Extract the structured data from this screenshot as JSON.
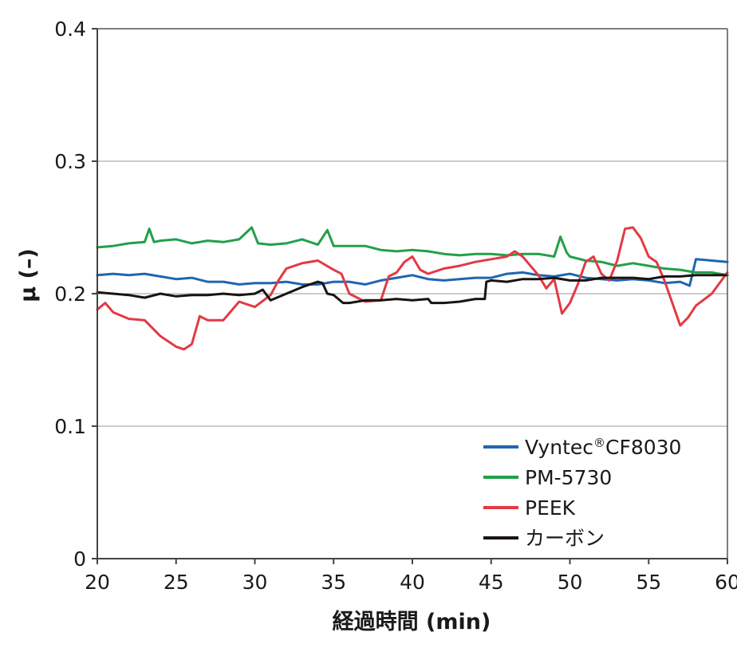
{
  "chart_data": {
    "type": "line",
    "xlabel": "経過時間 (min)",
    "ylabel": "μ (–)",
    "xlim": [
      20,
      60
    ],
    "ylim": [
      0,
      0.4
    ],
    "xticks": [
      20,
      25,
      30,
      35,
      40,
      45,
      50,
      55,
      60
    ],
    "xtick_labels": [
      "20",
      "25",
      "30",
      "35",
      "40",
      "45",
      "50",
      "55",
      "60"
    ],
    "yticks": [
      0,
      0.1,
      0.2,
      0.3,
      0.4
    ],
    "ytick_labels": [
      "0",
      "0.1",
      "0.2",
      "0.3",
      "0.4"
    ],
    "grid": "horizontal",
    "legend": "bottom-right",
    "series": [
      {
        "name": "Vyntec®CF8030",
        "legend_base": "Vyntec",
        "legend_sup": "®",
        "legend_suffix": "CF8030",
        "color": "#1f66b0",
        "x": [
          20,
          21,
          22,
          23,
          24,
          25,
          26,
          27,
          28,
          29,
          30,
          31,
          32,
          33,
          34,
          35,
          36,
          37,
          38,
          39,
          40,
          41,
          42,
          43,
          44,
          45,
          46,
          47,
          48,
          49,
          50,
          51,
          52,
          53,
          54,
          55,
          56,
          57,
          57.6,
          58,
          59,
          60
        ],
        "y": [
          0.214,
          0.215,
          0.214,
          0.215,
          0.213,
          0.211,
          0.212,
          0.209,
          0.209,
          0.207,
          0.208,
          0.208,
          0.209,
          0.207,
          0.207,
          0.209,
          0.209,
          0.207,
          0.21,
          0.212,
          0.214,
          0.211,
          0.21,
          0.211,
          0.212,
          0.212,
          0.215,
          0.216,
          0.214,
          0.213,
          0.215,
          0.212,
          0.211,
          0.21,
          0.211,
          0.21,
          0.208,
          0.209,
          0.206,
          0.226,
          0.225,
          0.224
        ]
      },
      {
        "name": "PM-5730",
        "color": "#22a04a",
        "x": [
          20,
          21,
          22,
          23,
          23.3,
          23.6,
          24,
          25,
          26,
          27,
          28,
          29,
          29.8,
          30.2,
          31,
          32,
          33,
          34,
          34.6,
          35,
          36,
          37,
          38,
          39,
          40,
          41,
          42,
          43,
          44,
          45,
          46,
          47,
          48,
          49,
          49.4,
          49.8,
          50,
          51,
          52,
          53,
          54,
          55,
          56,
          57,
          58,
          59,
          60
        ],
        "y": [
          0.235,
          0.236,
          0.238,
          0.239,
          0.249,
          0.239,
          0.24,
          0.241,
          0.238,
          0.24,
          0.239,
          0.241,
          0.25,
          0.238,
          0.237,
          0.238,
          0.241,
          0.237,
          0.248,
          0.236,
          0.236,
          0.236,
          0.233,
          0.232,
          0.233,
          0.232,
          0.23,
          0.229,
          0.23,
          0.23,
          0.229,
          0.23,
          0.23,
          0.228,
          0.243,
          0.231,
          0.228,
          0.225,
          0.224,
          0.221,
          0.223,
          0.221,
          0.219,
          0.218,
          0.216,
          0.216,
          0.214
        ]
      },
      {
        "name": "PEEK",
        "color": "#e23a45",
        "x": [
          20,
          20.5,
          21,
          22,
          23,
          24,
          24.5,
          25,
          25.5,
          26,
          26.5,
          27,
          28,
          29,
          30,
          31,
          31.5,
          32,
          33,
          34,
          35,
          35.5,
          36,
          37,
          38,
          38.5,
          39,
          39.5,
          40,
          40.5,
          41,
          42,
          43,
          44,
          45,
          46,
          46.5,
          47,
          48,
          48.5,
          49,
          49.5,
          50,
          50.5,
          51,
          51.5,
          52,
          52.5,
          53,
          53.5,
          54,
          54.5,
          55,
          55.5,
          56,
          56.5,
          57,
          57.5,
          58,
          59,
          60
        ],
        "y": [
          0.188,
          0.193,
          0.186,
          0.181,
          0.18,
          0.168,
          0.164,
          0.16,
          0.158,
          0.162,
          0.183,
          0.18,
          0.18,
          0.194,
          0.19,
          0.199,
          0.21,
          0.219,
          0.223,
          0.225,
          0.218,
          0.215,
          0.2,
          0.194,
          0.195,
          0.213,
          0.216,
          0.224,
          0.228,
          0.218,
          0.215,
          0.219,
          0.221,
          0.224,
          0.226,
          0.228,
          0.232,
          0.228,
          0.214,
          0.204,
          0.211,
          0.185,
          0.193,
          0.207,
          0.224,
          0.228,
          0.215,
          0.21,
          0.225,
          0.249,
          0.25,
          0.242,
          0.228,
          0.224,
          0.21,
          0.193,
          0.176,
          0.182,
          0.191,
          0.2,
          0.216
        ]
      },
      {
        "name": "カーボン",
        "color": "#1a1411",
        "x": [
          20,
          21,
          22,
          23,
          24,
          25,
          26,
          27,
          28,
          29,
          30,
          30.5,
          31,
          32,
          33,
          34,
          34.3,
          34.6,
          35,
          35.6,
          36,
          37,
          38,
          39,
          40,
          41,
          41.2,
          42,
          43,
          44,
          44.6,
          44.7,
          45,
          46,
          47,
          48,
          49,
          50,
          51,
          52,
          53,
          54,
          55,
          56,
          57,
          58,
          59,
          60
        ],
        "y": [
          0.201,
          0.2,
          0.199,
          0.197,
          0.2,
          0.198,
          0.199,
          0.199,
          0.2,
          0.199,
          0.2,
          0.203,
          0.195,
          0.2,
          0.205,
          0.209,
          0.208,
          0.2,
          0.199,
          0.193,
          0.193,
          0.195,
          0.195,
          0.196,
          0.195,
          0.196,
          0.193,
          0.193,
          0.194,
          0.196,
          0.196,
          0.209,
          0.21,
          0.209,
          0.211,
          0.211,
          0.212,
          0.21,
          0.21,
          0.212,
          0.212,
          0.212,
          0.211,
          0.213,
          0.213,
          0.214,
          0.214,
          0.214
        ]
      }
    ]
  }
}
